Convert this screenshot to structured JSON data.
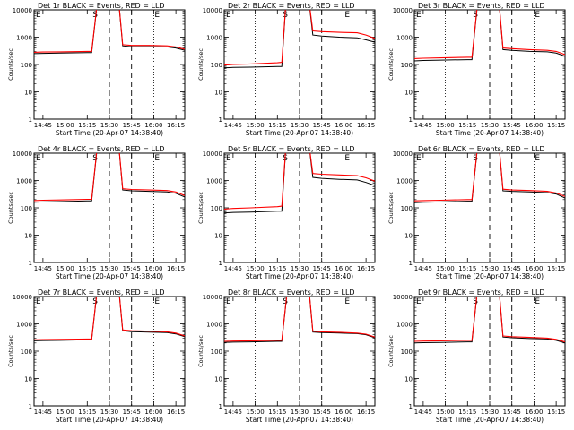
{
  "figure": {
    "background": "#ffffff",
    "event_color": "#000000",
    "lld_color": "#ff0000"
  },
  "chart_data": [
    {
      "type": "line",
      "title": "Det 1r BLACK = Events, RED = LLD",
      "xlabel": "Start Time (20-Apr-07 14:38:40)",
      "ylabel": "Counts/sec",
      "yscale": "log",
      "ylim": [
        1,
        10000
      ],
      "xlim": [
        -0.1,
        1.6
      ],
      "x_tick_labels": [
        "14:45",
        "15:00",
        "15:15",
        "15:30",
        "15:45",
        "16:00",
        "16:15"
      ],
      "y_tick_labels": [
        "1",
        "10",
        "100",
        "1000",
        "10000"
      ],
      "markers": [
        {
          "label": "E",
          "x": -0.1
        },
        {
          "label": "S",
          "x": 0.55
        },
        {
          "label": "E",
          "x": 1.25
        }
      ],
      "series": [
        {
          "name": "Events",
          "color": "#000000",
          "x": [
            -0.1,
            0.0,
            0.2,
            0.5,
            0.55,
            0.62,
            0.85,
            0.9,
            1.0,
            1.2,
            1.4,
            1.5,
            1.6
          ],
          "values": [
            250,
            255,
            260,
            270,
            270,
            30000,
            30000,
            480,
            450,
            450,
            440,
            400,
            330
          ]
        },
        {
          "name": "LLD",
          "color": "#ff0000",
          "x": [
            -0.1,
            0.0,
            0.2,
            0.5,
            0.55,
            0.62,
            0.85,
            0.9,
            1.0,
            1.2,
            1.4,
            1.5,
            1.6
          ],
          "values": [
            280,
            285,
            290,
            300,
            300,
            30000,
            30000,
            530,
            500,
            500,
            480,
            440,
            360
          ]
        }
      ]
    },
    {
      "type": "line",
      "title": "Det 2r BLACK = Events, RED = LLD",
      "xlabel": "Start Time (20-Apr-07 14:38:40)",
      "ylabel": "Counts/sec",
      "yscale": "log",
      "ylim": [
        1,
        10000
      ],
      "xlim": [
        -0.1,
        1.6
      ],
      "x_tick_labels": [
        "14:45",
        "15:00",
        "15:15",
        "15:30",
        "15:45",
        "16:00",
        "16:15"
      ],
      "y_tick_labels": [
        "1",
        "10",
        "100",
        "1000",
        "10000"
      ],
      "markers": [
        {
          "label": "E",
          "x": -0.1
        },
        {
          "label": "S",
          "x": 0.55
        },
        {
          "label": "E",
          "x": 1.25
        }
      ],
      "series": [
        {
          "name": "Events",
          "color": "#000000",
          "x": [
            -0.1,
            0.0,
            0.2,
            0.5,
            0.55,
            0.6,
            0.85,
            0.9,
            1.0,
            1.2,
            1.4,
            1.5,
            1.6
          ],
          "values": [
            75,
            78,
            80,
            85,
            85,
            30000,
            30000,
            1200,
            1100,
            1000,
            950,
            800,
            650
          ]
        },
        {
          "name": "LLD",
          "color": "#ff0000",
          "x": [
            -0.1,
            0.0,
            0.2,
            0.5,
            0.55,
            0.6,
            0.85,
            0.9,
            1.0,
            1.2,
            1.4,
            1.5,
            1.6
          ],
          "values": [
            95,
            100,
            105,
            115,
            120,
            30000,
            30000,
            1700,
            1600,
            1500,
            1450,
            1200,
            900
          ]
        }
      ]
    },
    {
      "type": "line",
      "title": "Det 3r BLACK = Events, RED = LLD",
      "xlabel": "Start Time (20-Apr-07 14:38:40)",
      "ylabel": "Counts/sec",
      "yscale": "log",
      "ylim": [
        1,
        10000
      ],
      "xlim": [
        -0.1,
        1.6
      ],
      "x_tick_labels": [
        "14:45",
        "15:00",
        "15:15",
        "15:30",
        "15:45",
        "16:00",
        "16:15"
      ],
      "y_tick_labels": [
        "1",
        "10",
        "100",
        "1000",
        "10000"
      ],
      "markers": [
        {
          "label": "E",
          "x": -0.1
        },
        {
          "label": "S",
          "x": 0.55
        },
        {
          "label": "E",
          "x": 1.25
        }
      ],
      "series": [
        {
          "name": "Events",
          "color": "#000000",
          "x": [
            -0.1,
            0.0,
            0.2,
            0.5,
            0.55,
            0.62,
            0.85,
            0.9,
            1.0,
            1.2,
            1.4,
            1.5,
            1.6
          ],
          "values": [
            135,
            140,
            145,
            150,
            150,
            30000,
            30000,
            350,
            330,
            300,
            290,
            260,
            200
          ]
        },
        {
          "name": "LLD",
          "color": "#ff0000",
          "x": [
            -0.1,
            0.0,
            0.2,
            0.5,
            0.55,
            0.62,
            0.85,
            0.9,
            1.0,
            1.2,
            1.4,
            1.5,
            1.6
          ],
          "values": [
            165,
            170,
            175,
            185,
            185,
            30000,
            30000,
            400,
            380,
            350,
            330,
            300,
            230
          ]
        }
      ]
    },
    {
      "type": "line",
      "title": "Det 4r BLACK = Events, RED = LLD",
      "xlabel": "Start Time (20-Apr-07 14:38:40)",
      "ylabel": "Counts/sec",
      "yscale": "log",
      "ylim": [
        1,
        10000
      ],
      "xlim": [
        -0.1,
        1.6
      ],
      "x_tick_labels": [
        "14:45",
        "15:00",
        "15:15",
        "15:30",
        "15:45",
        "16:00",
        "16:15"
      ],
      "y_tick_labels": [
        "1",
        "10",
        "100",
        "1000",
        "10000"
      ],
      "markers": [
        {
          "label": "E",
          "x": -0.1
        },
        {
          "label": "S",
          "x": 0.55
        },
        {
          "label": "E",
          "x": 1.25
        }
      ],
      "series": [
        {
          "name": "Events",
          "color": "#000000",
          "x": [
            -0.1,
            0.0,
            0.2,
            0.5,
            0.55,
            0.62,
            0.85,
            0.9,
            1.0,
            1.2,
            1.4,
            1.5,
            1.6
          ],
          "values": [
            160,
            165,
            170,
            180,
            180,
            30000,
            30000,
            450,
            420,
            400,
            380,
            340,
            250
          ]
        },
        {
          "name": "LLD",
          "color": "#ff0000",
          "x": [
            -0.1,
            0.0,
            0.2,
            0.5,
            0.55,
            0.62,
            0.85,
            0.9,
            1.0,
            1.2,
            1.4,
            1.5,
            1.6
          ],
          "values": [
            185,
            190,
            195,
            205,
            205,
            30000,
            30000,
            500,
            470,
            450,
            430,
            380,
            280
          ]
        }
      ]
    },
    {
      "type": "line",
      "title": "Det 5r BLACK = Events, RED = LLD",
      "xlabel": "Start Time (20-Apr-07 14:38:40)",
      "ylabel": "Counts/sec",
      "yscale": "log",
      "ylim": [
        1,
        10000
      ],
      "xlim": [
        -0.1,
        1.6
      ],
      "x_tick_labels": [
        "14:45",
        "15:00",
        "15:15",
        "15:30",
        "15:45",
        "16:00",
        "16:15"
      ],
      "y_tick_labels": [
        "1",
        "10",
        "100",
        "1000",
        "10000"
      ],
      "markers": [
        {
          "label": "E",
          "x": -0.1
        },
        {
          "label": "S",
          "x": 0.55
        },
        {
          "label": "E",
          "x": 1.25
        }
      ],
      "series": [
        {
          "name": "Events",
          "color": "#000000",
          "x": [
            -0.1,
            0.0,
            0.2,
            0.5,
            0.55,
            0.6,
            0.85,
            0.9,
            1.0,
            1.2,
            1.4,
            1.5,
            1.6
          ],
          "values": [
            65,
            68,
            70,
            75,
            75,
            30000,
            30000,
            1300,
            1200,
            1100,
            1050,
            850,
            650
          ]
        },
        {
          "name": "LLD",
          "color": "#ff0000",
          "x": [
            -0.1,
            0.0,
            0.2,
            0.5,
            0.55,
            0.6,
            0.85,
            0.9,
            1.0,
            1.2,
            1.4,
            1.5,
            1.6
          ],
          "values": [
            90,
            95,
            100,
            110,
            115,
            30000,
            30000,
            1800,
            1700,
            1600,
            1500,
            1250,
            950
          ]
        }
      ]
    },
    {
      "type": "line",
      "title": "Det 6r BLACK = Events, RED = LLD",
      "xlabel": "Start Time (20-Apr-07 14:38:40)",
      "ylabel": "Counts/sec",
      "yscale": "log",
      "ylim": [
        1,
        10000
      ],
      "xlim": [
        -0.1,
        1.6
      ],
      "x_tick_labels": [
        "14:45",
        "15:00",
        "15:15",
        "15:30",
        "15:45",
        "16:00",
        "16:15"
      ],
      "y_tick_labels": [
        "1",
        "10",
        "100",
        "1000",
        "10000"
      ],
      "markers": [
        {
          "label": "E",
          "x": -0.1
        },
        {
          "label": "S",
          "x": 0.55
        },
        {
          "label": "E",
          "x": 1.25
        }
      ],
      "series": [
        {
          "name": "Events",
          "color": "#000000",
          "x": [
            -0.1,
            0.0,
            0.2,
            0.5,
            0.55,
            0.62,
            0.85,
            0.9,
            1.0,
            1.2,
            1.4,
            1.5,
            1.6
          ],
          "values": [
            155,
            160,
            165,
            175,
            175,
            30000,
            30000,
            420,
            400,
            380,
            360,
            320,
            230
          ]
        },
        {
          "name": "LLD",
          "color": "#ff0000",
          "x": [
            -0.1,
            0.0,
            0.2,
            0.5,
            0.55,
            0.62,
            0.85,
            0.9,
            1.0,
            1.2,
            1.4,
            1.5,
            1.6
          ],
          "values": [
            180,
            185,
            190,
            200,
            200,
            30000,
            30000,
            480,
            450,
            430,
            400,
            350,
            260
          ]
        }
      ]
    },
    {
      "type": "line",
      "title": "Det 7r BLACK = Events, RED = LLD",
      "xlabel": "Start Time (20-Apr-07 14:38:40)",
      "ylabel": "Counts/sec",
      "yscale": "log",
      "ylim": [
        1,
        10000
      ],
      "xlim": [
        -0.1,
        1.6
      ],
      "x_tick_labels": [
        "14:45",
        "15:00",
        "15:15",
        "15:30",
        "15:45",
        "16:00",
        "16:15"
      ],
      "y_tick_labels": [
        "1",
        "10",
        "100",
        "1000",
        "10000"
      ],
      "markers": [
        {
          "label": "E",
          "x": -0.1
        },
        {
          "label": "S",
          "x": 0.55
        },
        {
          "label": "E",
          "x": 1.25
        }
      ],
      "series": [
        {
          "name": "Events",
          "color": "#000000",
          "x": [
            -0.1,
            0.0,
            0.2,
            0.5,
            0.55,
            0.62,
            0.85,
            0.9,
            1.0,
            1.2,
            1.4,
            1.5,
            1.6
          ],
          "values": [
            240,
            245,
            250,
            260,
            260,
            30000,
            30000,
            560,
            520,
            500,
            480,
            430,
            340
          ]
        },
        {
          "name": "LLD",
          "color": "#ff0000",
          "x": [
            -0.1,
            0.0,
            0.2,
            0.5,
            0.55,
            0.62,
            0.85,
            0.9,
            1.0,
            1.2,
            1.4,
            1.5,
            1.6
          ],
          "values": [
            260,
            265,
            270,
            280,
            280,
            30000,
            30000,
            600,
            560,
            540,
            510,
            460,
            360
          ]
        }
      ]
    },
    {
      "type": "line",
      "title": "Det 8r BLACK = Events, RED = LLD",
      "xlabel": "Start Time (20-Apr-07 14:38:40)",
      "ylabel": "Counts/sec",
      "yscale": "log",
      "ylim": [
        1,
        10000
      ],
      "xlim": [
        -0.1,
        1.6
      ],
      "x_tick_labels": [
        "14:45",
        "15:00",
        "15:15",
        "15:30",
        "15:45",
        "16:00",
        "16:15"
      ],
      "y_tick_labels": [
        "1",
        "10",
        "100",
        "1000",
        "10000"
      ],
      "markers": [
        {
          "label": "E",
          "x": -0.1
        },
        {
          "label": "S",
          "x": 0.55
        },
        {
          "label": "E",
          "x": 1.25
        }
      ],
      "series": [
        {
          "name": "Events",
          "color": "#000000",
          "x": [
            -0.1,
            0.0,
            0.2,
            0.5,
            0.55,
            0.62,
            0.85,
            0.9,
            1.0,
            1.2,
            1.4,
            1.5,
            1.6
          ],
          "values": [
            210,
            215,
            220,
            230,
            230,
            30000,
            30000,
            500,
            480,
            460,
            440,
            400,
            310
          ]
        },
        {
          "name": "LLD",
          "color": "#ff0000",
          "x": [
            -0.1,
            0.0,
            0.2,
            0.5,
            0.55,
            0.62,
            0.85,
            0.9,
            1.0,
            1.2,
            1.4,
            1.5,
            1.6
          ],
          "values": [
            230,
            235,
            240,
            250,
            250,
            30000,
            30000,
            540,
            510,
            490,
            460,
            420,
            330
          ]
        }
      ]
    },
    {
      "type": "line",
      "title": "Det 9r BLACK = Events, RED = LLD",
      "xlabel": "Start Time (20-Apr-07 14:38:40)",
      "ylabel": "Counts/sec",
      "yscale": "log",
      "ylim": [
        1,
        10000
      ],
      "xlim": [
        -0.1,
        1.6
      ],
      "x_tick_labels": [
        "14:45",
        "15:00",
        "15:15",
        "15:30",
        "15:45",
        "16:00",
        "16:15"
      ],
      "y_tick_labels": [
        "1",
        "10",
        "100",
        "1000",
        "10000"
      ],
      "markers": [
        {
          "label": "E",
          "x": -0.1
        },
        {
          "label": "S",
          "x": 0.55
        },
        {
          "label": "E",
          "x": 1.25
        }
      ],
      "series": [
        {
          "name": "Events",
          "color": "#000000",
          "x": [
            -0.1,
            0.0,
            0.2,
            0.5,
            0.55,
            0.62,
            0.85,
            0.9,
            1.0,
            1.2,
            1.4,
            1.5,
            1.6
          ],
          "values": [
            200,
            205,
            210,
            220,
            220,
            30000,
            30000,
            330,
            310,
            290,
            280,
            250,
            200
          ]
        },
        {
          "name": "LLD",
          "color": "#ff0000",
          "x": [
            -0.1,
            0.0,
            0.2,
            0.5,
            0.55,
            0.62,
            0.85,
            0.9,
            1.0,
            1.2,
            1.4,
            1.5,
            1.6
          ],
          "values": [
            230,
            235,
            240,
            250,
            250,
            30000,
            30000,
            360,
            340,
            320,
            300,
            270,
            220
          ]
        }
      ]
    }
  ]
}
